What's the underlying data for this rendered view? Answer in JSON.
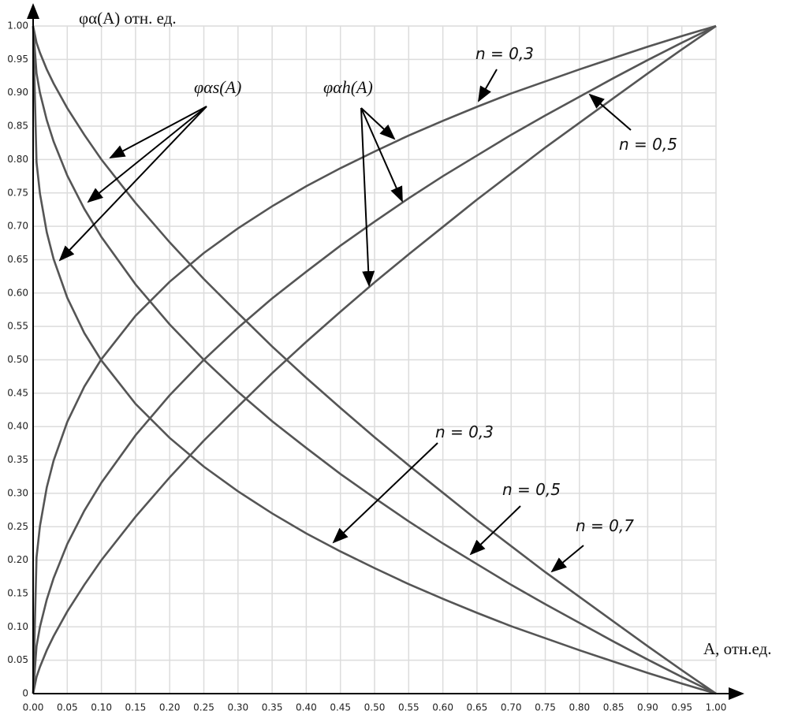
{
  "chart_data": {
    "type": "line",
    "y_label": "φα(A) отн. ед.",
    "x_label": "A, отн.ед.",
    "x": [
      0,
      0.005,
      0.01,
      0.02,
      0.03,
      0.05,
      0.075,
      0.1,
      0.15,
      0.2,
      0.25,
      0.3,
      0.35,
      0.4,
      0.45,
      0.5,
      0.55,
      0.6,
      0.65,
      0.7,
      0.75,
      0.8,
      0.85,
      0.9,
      0.95,
      1
    ],
    "series": [
      {
        "color": "#555555",
        "values": [
          0,
          0.204,
          0.251,
          0.309,
          0.349,
          0.407,
          0.46,
          0.501,
          0.566,
          0.617,
          0.66,
          0.697,
          0.73,
          0.76,
          0.787,
          0.812,
          0.836,
          0.858,
          0.879,
          0.899,
          0.917,
          0.935,
          0.952,
          0.969,
          0.985,
          1
        ]
      },
      {
        "color": "#555555",
        "values": [
          0,
          0.071,
          0.1,
          0.141,
          0.173,
          0.224,
          0.274,
          0.316,
          0.387,
          0.447,
          0.5,
          0.548,
          0.592,
          0.632,
          0.671,
          0.707,
          0.742,
          0.775,
          0.806,
          0.837,
          0.866,
          0.894,
          0.922,
          0.949,
          0.975,
          1
        ]
      },
      {
        "color": "#555555",
        "values": [
          0,
          0.025,
          0.04,
          0.065,
          0.086,
          0.123,
          0.163,
          0.2,
          0.265,
          0.324,
          0.379,
          0.43,
          0.48,
          0.527,
          0.572,
          0.616,
          0.658,
          0.699,
          0.74,
          0.779,
          0.818,
          0.855,
          0.892,
          0.929,
          0.965,
          1
        ]
      },
      {
        "color": "#555555",
        "values": [
          1,
          0.796,
          0.749,
          0.691,
          0.651,
          0.593,
          0.54,
          0.499,
          0.434,
          0.383,
          0.34,
          0.303,
          0.27,
          0.24,
          0.213,
          0.188,
          0.164,
          0.142,
          0.121,
          0.101,
          0.083,
          0.065,
          0.048,
          0.031,
          0.015,
          0
        ]
      },
      {
        "color": "#555555",
        "values": [
          1,
          0.929,
          0.9,
          0.859,
          0.827,
          0.776,
          0.726,
          0.684,
          0.613,
          0.553,
          0.5,
          0.452,
          0.408,
          0.368,
          0.329,
          0.293,
          0.258,
          0.225,
          0.194,
          0.163,
          0.134,
          0.106,
          0.078,
          0.051,
          0.025,
          0
        ]
      },
      {
        "color": "#555555",
        "values": [
          1,
          0.975,
          0.96,
          0.935,
          0.914,
          0.877,
          0.837,
          0.8,
          0.735,
          0.676,
          0.621,
          0.57,
          0.52,
          0.473,
          0.428,
          0.384,
          0.342,
          0.301,
          0.26,
          0.221,
          0.182,
          0.145,
          0.108,
          0.071,
          0.035,
          0
        ]
      }
    ],
    "annotations": [
      "φαs(A)",
      "φαh(A)",
      "n = 0,3",
      "n = 0,5",
      "n = 0,3",
      "n = 0,5",
      "n = 0,7"
    ],
    "xlim": [
      0,
      1
    ],
    "ylim": [
      0,
      1
    ],
    "xticks": [
      {
        "value": 0,
        "label": "0.00"
      },
      0.05,
      {
        "value": 0.1,
        "label": "0.10"
      },
      0.15,
      {
        "value": 0.2,
        "label": "0.20"
      },
      0.25,
      {
        "value": 0.3,
        "label": "0.30"
      },
      0.35,
      {
        "value": 0.4,
        "label": "0.40"
      },
      0.45,
      {
        "value": 0.5,
        "label": "0.50"
      },
      0.55,
      {
        "value": 0.6,
        "label": "0.60"
      },
      0.65,
      {
        "value": 0.7,
        "label": "0.70"
      },
      0.75,
      {
        "value": 0.8,
        "label": "0.80"
      },
      0.85,
      {
        "value": 0.9,
        "label": "0.90"
      },
      0.95,
      {
        "value": 1,
        "label": "1.00"
      }
    ],
    "yticks": [
      0,
      0.05,
      {
        "value": 0.1,
        "label": "0.10"
      },
      0.15,
      {
        "value": 0.2,
        "label": "0.20"
      },
      0.25,
      {
        "value": 0.3,
        "label": "0.30"
      },
      0.35,
      {
        "value": 0.4,
        "label": "0.40"
      },
      0.45,
      {
        "value": 0.5,
        "label": "0.50"
      },
      0.55,
      {
        "value": 0.6,
        "label": "0.60"
      },
      0.65,
      {
        "value": 0.7,
        "label": "0.70"
      },
      0.75,
      {
        "value": 0.8,
        "label": "0.80"
      },
      0.85,
      {
        "value": 0.9,
        "label": "0.90"
      },
      0.95,
      {
        "value": 1,
        "label": "1.00"
      }
    ],
    "grid": true
  }
}
